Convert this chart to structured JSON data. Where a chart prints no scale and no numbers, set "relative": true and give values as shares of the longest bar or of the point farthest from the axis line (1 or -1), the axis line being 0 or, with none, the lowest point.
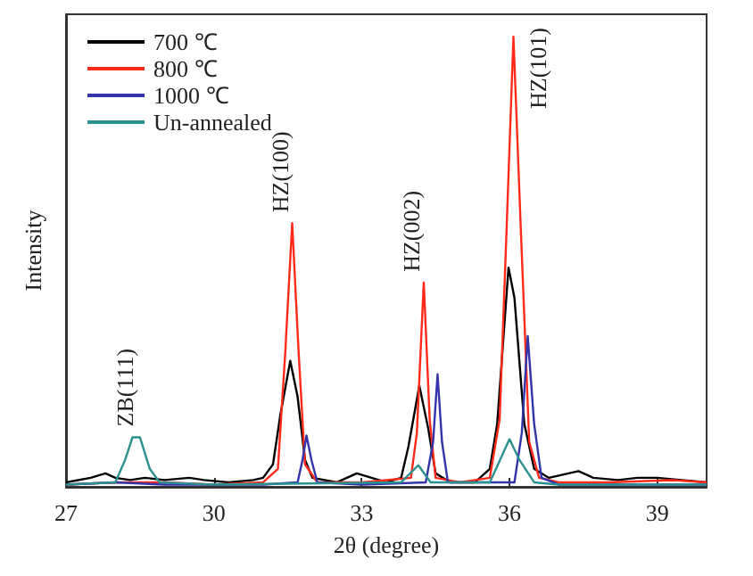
{
  "chart_data": {
    "type": "line",
    "relative": true,
    "xlabel": "2θ (degree)",
    "ylabel": "Intensity",
    "xlim": [
      27,
      40
    ],
    "xticks": [
      27,
      30,
      33,
      36,
      39
    ],
    "grid": false,
    "legend": "top left",
    "marker": "none",
    "line_style": "solid",
    "annotations": [
      {
        "text": "ZB(111)",
        "x": 28.45,
        "y": 0.11
      },
      {
        "text": "HZ(100)",
        "x": 31.59,
        "y": 0.586
      },
      {
        "text": "HZ(002)",
        "x": 34.26,
        "y": 0.454
      },
      {
        "text": "HZ(101)",
        "x": 36.08,
        "y": 1.0
      }
    ],
    "series": [
      {
        "name": "700 ℃",
        "color": "#000000",
        "x": [
          27,
          27.5,
          27.8,
          28.0,
          28.3,
          28.6,
          29.0,
          29.5,
          29.8,
          30.3,
          30.8,
          31.0,
          31.2,
          31.35,
          31.55,
          31.7,
          31.85,
          32.0,
          32.5,
          32.9,
          33.2,
          33.5,
          33.8,
          33.95,
          34.17,
          34.35,
          34.5,
          34.8,
          35.3,
          35.6,
          35.75,
          35.98,
          36.1,
          36.3,
          36.5,
          36.8,
          37.2,
          37.4,
          37.7,
          38.2,
          38.6,
          39.0,
          39.5,
          40
        ],
        "values": [
          0.01,
          0.02,
          0.03,
          0.02,
          0.015,
          0.02,
          0.015,
          0.02,
          0.015,
          0.01,
          0.015,
          0.02,
          0.05,
          0.16,
          0.28,
          0.2,
          0.06,
          0.02,
          0.01,
          0.03,
          0.02,
          0.01,
          0.02,
          0.09,
          0.225,
          0.13,
          0.03,
          0.01,
          0.01,
          0.04,
          0.14,
          0.487,
          0.42,
          0.14,
          0.04,
          0.02,
          0.03,
          0.035,
          0.02,
          0.015,
          0.02,
          0.02,
          0.015,
          0.01
        ]
      },
      {
        "name": "800 ℃",
        "color": "#ff2a1a",
        "x": [
          27,
          28,
          29,
          30,
          31,
          31.3,
          31.45,
          31.59,
          31.72,
          31.85,
          32.1,
          33,
          34.0,
          34.12,
          34.26,
          34.38,
          34.5,
          35.0,
          35.6,
          35.8,
          35.95,
          36.08,
          36.22,
          36.4,
          36.6,
          37,
          38,
          39.3,
          40
        ],
        "values": [
          0.005,
          0.01,
          0.01,
          0.005,
          0.01,
          0.04,
          0.3,
          0.586,
          0.3,
          0.05,
          0.01,
          0.01,
          0.02,
          0.12,
          0.454,
          0.15,
          0.02,
          0.01,
          0.02,
          0.15,
          0.6,
          1.0,
          0.6,
          0.1,
          0.02,
          0.01,
          0.01,
          0.015,
          0.01
        ]
      },
      {
        "name": "1000 ℃",
        "color": "#3333aa",
        "x": [
          27,
          28,
          29,
          30,
          31,
          31.7,
          31.8,
          31.88,
          31.98,
          32.1,
          33,
          34.3,
          34.45,
          34.54,
          34.63,
          34.75,
          36.1,
          36.25,
          36.37,
          36.5,
          36.65,
          37,
          38,
          40
        ],
        "values": [
          0.005,
          0.01,
          0.005,
          0.005,
          0.005,
          0.01,
          0.06,
          0.114,
          0.06,
          0.01,
          0.005,
          0.01,
          0.1,
          0.25,
          0.1,
          0.01,
          0.01,
          0.12,
          0.335,
          0.14,
          0.02,
          0.005,
          0.005,
          0.005
        ]
      },
      {
        "name": "Un-annealed",
        "color": "#2a9090",
        "x": [
          27,
          28.0,
          28.2,
          28.35,
          28.5,
          28.7,
          28.9,
          30,
          33.8,
          34.15,
          34.4,
          35.6,
          35.85,
          36.0,
          36.2,
          36.5,
          37,
          40
        ],
        "values": [
          0.005,
          0.01,
          0.06,
          0.11,
          0.11,
          0.04,
          0.01,
          0.005,
          0.01,
          0.048,
          0.01,
          0.01,
          0.07,
          0.106,
          0.06,
          0.01,
          0.005,
          0.005
        ]
      }
    ]
  }
}
